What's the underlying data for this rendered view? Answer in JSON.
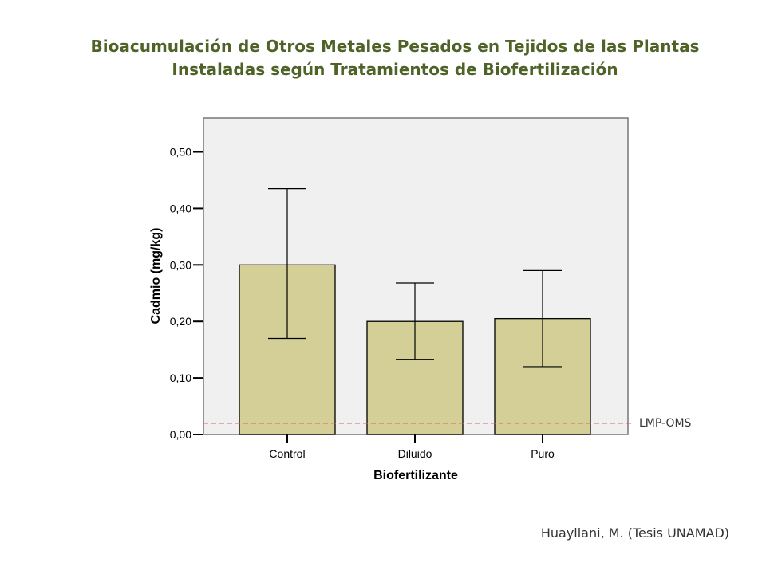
{
  "title_lines": [
    "Bioacumulación de Otros Metales Pesados en Tejidos de las Plantas",
    "Instaladas según Tratamientos de Biofertilización"
  ],
  "credit": "Huayllani, M. (Tesis UNAMAD)",
  "reference_label": "LMP-OMS",
  "colors": {
    "title": "#4f6228",
    "bar_fill": "#d3cf97",
    "plot_bg": "#f0f0f0",
    "reference_line": "#e06060"
  },
  "chart_data": {
    "type": "bar",
    "xlabel": "Biofertilizante",
    "ylabel": "Cadmio (mg/kg)",
    "categories": [
      "Control",
      "Diluido",
      "Puro"
    ],
    "values": [
      0.3,
      0.2,
      0.205
    ],
    "error_low": [
      0.17,
      0.133,
      0.12
    ],
    "error_high": [
      0.435,
      0.268,
      0.29
    ],
    "ylim": [
      0,
      0.56
    ],
    "yticks": [
      0,
      0.1,
      0.2,
      0.3,
      0.4,
      0.5
    ],
    "ytick_labels": [
      "0,00",
      "0,10",
      "0,20",
      "0,30",
      "0,40",
      "0,50"
    ],
    "reference_value": 0.02,
    "grid": false,
    "legend": "none"
  }
}
